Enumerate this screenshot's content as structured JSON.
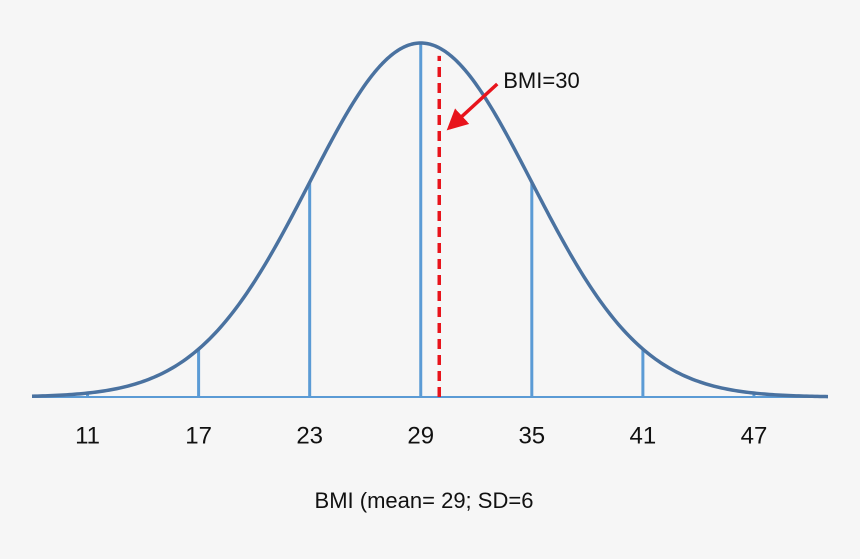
{
  "chart_data": {
    "type": "density",
    "mean": 29,
    "sd": 6,
    "xlim": [
      8,
      51
    ],
    "xticks": [
      11,
      17,
      23,
      29,
      35,
      41,
      47
    ],
    "x_label": "BMI (mean= 29; SD=6",
    "curve_color": "#4a72a0",
    "line_color": "#5b9bd5",
    "marker": {
      "value": 30,
      "label": "BMI=30",
      "color": "#e8141c"
    }
  }
}
